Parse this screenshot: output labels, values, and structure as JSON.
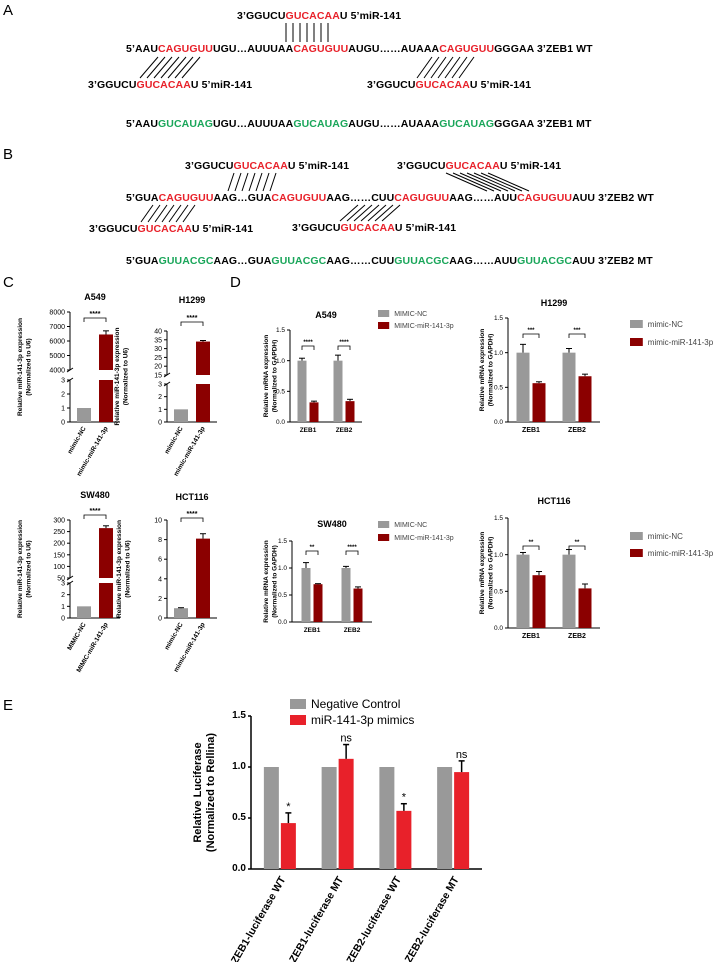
{
  "panels": {
    "a": "A",
    "b": "B",
    "c": "C",
    "d": "D",
    "e": "E"
  },
  "panel_a": {
    "top_mir": [
      {
        "t": "3’GGUCU",
        "c": "b"
      },
      {
        "t": "GUCACAA",
        "c": "r"
      },
      {
        "t": "U   5’miR-141",
        "c": "b"
      }
    ],
    "wt": [
      {
        "t": "5’AAU",
        "c": "b"
      },
      {
        "t": "CAGUGUU",
        "c": "r"
      },
      {
        "t": "UGU…AUUUAA",
        "c": "b"
      },
      {
        "t": "CAGUGUU",
        "c": "r"
      },
      {
        "t": "AUGU……AUAAA",
        "c": "b"
      },
      {
        "t": "CAGUGUU",
        "c": "r"
      },
      {
        "t": "GGGAA 3’ZEB1 WT",
        "c": "b"
      }
    ],
    "bottom_left_mir": [
      {
        "t": "3’GGUCU",
        "c": "b"
      },
      {
        "t": "GUCACAA",
        "c": "r"
      },
      {
        "t": "U   5’miR-141",
        "c": "b"
      }
    ],
    "bottom_right_mir": [
      {
        "t": "3’GGUCU",
        "c": "b"
      },
      {
        "t": "GUCACAA",
        "c": "r"
      },
      {
        "t": "U   5’miR-141",
        "c": "b"
      }
    ],
    "mt": [
      {
        "t": "5’AAU",
        "c": "b"
      },
      {
        "t": "GUCAUAG",
        "c": "g"
      },
      {
        "t": "UGU…AUUUAA",
        "c": "b"
      },
      {
        "t": "GUCAUAG",
        "c": "g"
      },
      {
        "t": "AUGU……AUAAA",
        "c": "b"
      },
      {
        "t": "GUCAUAG",
        "c": "g"
      },
      {
        "t": "GGGAA 3’ZEB1 MT",
        "c": "b"
      }
    ]
  },
  "panel_b": {
    "top_left_mir": [
      {
        "t": "3’GGUCU",
        "c": "b"
      },
      {
        "t": "GUCACAA",
        "c": "r"
      },
      {
        "t": "U   5’miR-141",
        "c": "b"
      }
    ],
    "top_right_mir": [
      {
        "t": "3’GGUCU",
        "c": "b"
      },
      {
        "t": "GUCACAA",
        "c": "r"
      },
      {
        "t": "U      5’miR-141",
        "c": "b"
      }
    ],
    "wt": [
      {
        "t": "5’GUA",
        "c": "b"
      },
      {
        "t": "CAGUGUU",
        "c": "r"
      },
      {
        "t": "AAG…GUA",
        "c": "b"
      },
      {
        "t": "CAGUGUU",
        "c": "r"
      },
      {
        "t": "AAG……CUU",
        "c": "b"
      },
      {
        "t": "CAGUGUU",
        "c": "r"
      },
      {
        "t": "AAG……AUU",
        "c": "b"
      },
      {
        "t": "CAGUGUU",
        "c": "r"
      },
      {
        "t": "AUU    3’ZEB2 WT",
        "c": "b"
      }
    ],
    "bottom_left_mir": [
      {
        "t": "3’GGUCU",
        "c": "b"
      },
      {
        "t": "GUCACAA",
        "c": "r"
      },
      {
        "t": "U   5’miR-141",
        "c": "b"
      }
    ],
    "bottom_mid_mir": [
      {
        "t": "3’GGUCU",
        "c": "b"
      },
      {
        "t": "GUCACAA",
        "c": "r"
      },
      {
        "t": "U   5’miR-141",
        "c": "b"
      }
    ],
    "mt": [
      {
        "t": "5’GUA",
        "c": "b"
      },
      {
        "t": "GUUACGC",
        "c": "g"
      },
      {
        "t": "AAG…GUA",
        "c": "b"
      },
      {
        "t": "GUUACGC",
        "c": "g"
      },
      {
        "t": "AAG……CUU",
        "c": "b"
      },
      {
        "t": "GUUACGC",
        "c": "g"
      },
      {
        "t": "AAG……AUU",
        "c": "b"
      },
      {
        "t": "GUUACGC",
        "c": "g"
      },
      {
        "t": "AUU    3’ZEB2 MT",
        "c": "b"
      }
    ]
  },
  "colors": {
    "grey": "#999999",
    "darkred": "#8b0000",
    "red": "#e8212a",
    "green": "#1aa65a"
  },
  "chart_data": [
    {
      "id": "c_a549",
      "type": "bar",
      "panel": "C",
      "title": "A549",
      "ylabel": [
        "Relative miR-141-3p expression",
        "(Normalized to U6)"
      ],
      "categories": [
        "mimic-NC",
        "mimic-miR-141-3p"
      ],
      "values": [
        1,
        6450
      ],
      "errors": [
        0.1,
        250
      ],
      "upper_ticks": [
        "4000",
        "5000",
        "6000",
        "7000",
        "8000"
      ],
      "lower_ticks": [
        "0",
        "1",
        "2",
        "3"
      ],
      "sig": "****"
    },
    {
      "id": "c_h1299",
      "type": "bar",
      "panel": "C",
      "title": "H1299",
      "ylabel": [
        "Relative miR-141-3p expression",
        "(Normalized to U6)"
      ],
      "categories": [
        "mimic-NC",
        "mimic-miR-141-3p"
      ],
      "values": [
        1,
        34
      ],
      "errors": [
        0.1,
        0.6
      ],
      "upper_ticks": [
        "15",
        "20",
        "25",
        "30",
        "35",
        "40"
      ],
      "lower_ticks": [
        "0",
        "1",
        "2",
        "3"
      ],
      "sig": "****"
    },
    {
      "id": "c_sw480",
      "type": "bar",
      "panel": "C",
      "title": "SW480",
      "ylabel": [
        "Relative miR-141-3p expression",
        "(Normalized to U6)"
      ],
      "categories": [
        "MIMIC-NC",
        "MIMIC-miR-141-3p"
      ],
      "values": [
        1,
        265
      ],
      "errors": [
        0.05,
        10
      ],
      "upper_ticks": [
        "50",
        "100",
        "150",
        "200",
        "250",
        "300"
      ],
      "lower_ticks": [
        "0",
        "1",
        "2",
        "3"
      ],
      "sig": "****"
    },
    {
      "id": "c_hct116",
      "type": "bar",
      "panel": "C",
      "title": "HCT116",
      "ylabel": [
        "Relative miR-141-3p expression",
        "(Normalized to U6)"
      ],
      "categories": [
        "mimic-NC",
        "mimic-miR-141-3p"
      ],
      "values": [
        1,
        8.1
      ],
      "errors": [
        0.05,
        0.5
      ],
      "yticks": [
        "0",
        "2",
        "4",
        "6",
        "8",
        "10"
      ],
      "ylim": [
        0,
        10
      ],
      "sig": "****"
    },
    {
      "id": "d_a549",
      "type": "bar",
      "panel": "D",
      "title": "A549",
      "ylabel": [
        "Relative mRNA expression",
        "(Normalized to GAPDH)"
      ],
      "categories": [
        "ZEB1",
        "ZEB2"
      ],
      "series": [
        {
          "name": "MIMIC-NC",
          "values": [
            1.0,
            1.0
          ],
          "errors": [
            0.04,
            0.09
          ]
        },
        {
          "name": "MIMIC-miR-141-3p",
          "values": [
            0.32,
            0.34
          ],
          "errors": [
            0.02,
            0.03
          ]
        }
      ],
      "ylim": [
        0,
        1.5
      ],
      "yticks": [
        "0.0",
        "0.5",
        "1.0",
        "1.5"
      ],
      "sig": [
        "****",
        "****"
      ]
    },
    {
      "id": "d_h1299",
      "type": "bar",
      "panel": "D",
      "title": "H1299",
      "ylabel": [
        "Relative mRNA expression",
        "(Normalized to GAPDH)"
      ],
      "categories": [
        "ZEB1",
        "ZEB2"
      ],
      "series": [
        {
          "name": "mimic-NC",
          "values": [
            1.0,
            1.0
          ],
          "errors": [
            0.12,
            0.06
          ]
        },
        {
          "name": "mimic-miR-141-3p",
          "values": [
            0.56,
            0.66
          ],
          "errors": [
            0.02,
            0.03
          ]
        }
      ],
      "ylim": [
        0,
        1.5
      ],
      "yticks": [
        "0.0",
        "0.5",
        "1.0",
        "1.5"
      ],
      "sig": [
        "***",
        "***"
      ]
    },
    {
      "id": "d_sw480",
      "type": "bar",
      "panel": "D",
      "title": "SW480",
      "ylabel": [
        "Relative mRNA expression",
        "(Normalized to GAPDH)"
      ],
      "categories": [
        "ZEB1",
        "ZEB2"
      ],
      "series": [
        {
          "name": "MIMIC-NC",
          "values": [
            1.0,
            1.0
          ],
          "errors": [
            0.1,
            0.03
          ]
        },
        {
          "name": "MIMIC-miR-141-3p",
          "values": [
            0.7,
            0.62
          ],
          "errors": [
            0.01,
            0.03
          ]
        }
      ],
      "ylim": [
        0,
        1.5
      ],
      "yticks": [
        "0.0",
        "0.5",
        "1.0",
        "1.5"
      ],
      "sig": [
        "**",
        "****"
      ]
    },
    {
      "id": "d_hct116",
      "type": "bar",
      "panel": "D",
      "title": "HCT116",
      "ylabel": [
        "Relative mRNA expression",
        "(Normalized to GAPDH)"
      ],
      "categories": [
        "ZEB1",
        "ZEB2"
      ],
      "series": [
        {
          "name": "mimic-NC",
          "values": [
            1.0,
            1.0
          ],
          "errors": [
            0.03,
            0.07
          ]
        },
        {
          "name": "mimic-miR-141-3p",
          "values": [
            0.72,
            0.54
          ],
          "errors": [
            0.05,
            0.06
          ]
        }
      ],
      "ylim": [
        0,
        1.5
      ],
      "yticks": [
        "0.0",
        "0.5",
        "1.0",
        "1.5"
      ],
      "sig": [
        "**",
        "**"
      ]
    },
    {
      "id": "e_luc",
      "type": "bar",
      "panel": "E",
      "title": "",
      "ylabel": [
        "Relative Luciferase",
        "(Normalized to Rellina)"
      ],
      "categories": [
        "ZEB1-luciferase WT",
        "ZEB1-luciferase MT",
        "ZEB2-luciferase WT",
        "ZEB2-luciferase MT"
      ],
      "series": [
        {
          "name": "Negative Control",
          "values": [
            1,
            1,
            1,
            1
          ],
          "errors": [
            0,
            0,
            0,
            0
          ]
        },
        {
          "name": "miR-141-3p mimics",
          "values": [
            0.45,
            1.08,
            0.57,
            0.95
          ],
          "errors": [
            0.1,
            0.14,
            0.07,
            0.11
          ]
        }
      ],
      "ylim": [
        0,
        1.5
      ],
      "yticks": [
        "0.0",
        "0.5",
        "1.0",
        "1.5"
      ],
      "sig": [
        "*",
        "ns",
        "*",
        "ns"
      ]
    }
  ]
}
